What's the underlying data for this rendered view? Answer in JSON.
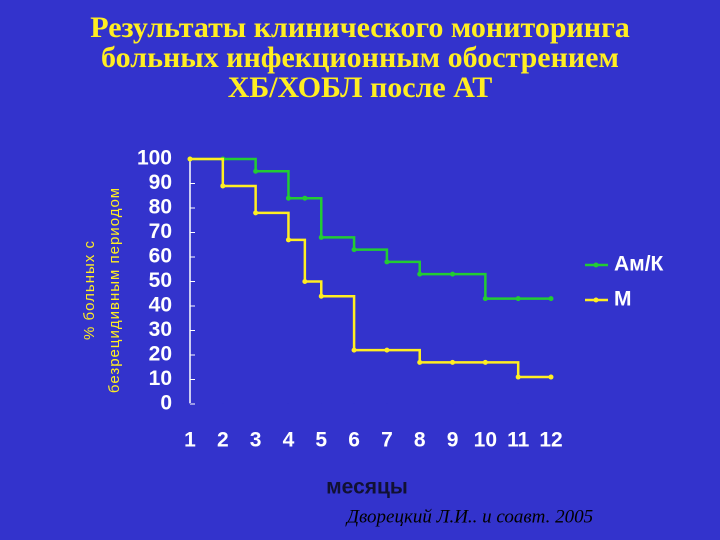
{
  "chart_data": {
    "type": "line",
    "title": [
      "Результаты клинического мониторинга",
      "больных инфекционным обострением",
      "ХБ/ХОБЛ после АТ"
    ],
    "ylabel": [
      "% больных с",
      "безрецидивным периодом"
    ],
    "xlabel": "месяцы",
    "source": "Дворецкий Л.И.. и соавт. 2005",
    "x": [
      1,
      2,
      3,
      4,
      4.5,
      5,
      6,
      7,
      8,
      9,
      10,
      11,
      12
    ],
    "series": [
      {
        "name": "Ам/К",
        "color": "#22cc33",
        "values": [
          100,
          100,
          95,
          84,
          84,
          68,
          63,
          58,
          53,
          53,
          43,
          43,
          43
        ]
      },
      {
        "name": "М",
        "color": "#ffee22",
        "values": [
          100,
          89,
          78,
          67,
          50,
          44,
          22,
          22,
          17,
          17,
          17,
          11,
          11
        ]
      }
    ],
    "step": true,
    "xlim": [
      1,
      12
    ],
    "xticks": [
      1,
      2,
      3,
      4,
      5,
      6,
      7,
      8,
      9,
      10,
      11,
      12
    ],
    "ylim": [
      0,
      100
    ],
    "yticks": [
      0,
      10,
      20,
      30,
      40,
      50,
      60,
      70,
      80,
      90,
      100
    ],
    "legend": "right"
  }
}
